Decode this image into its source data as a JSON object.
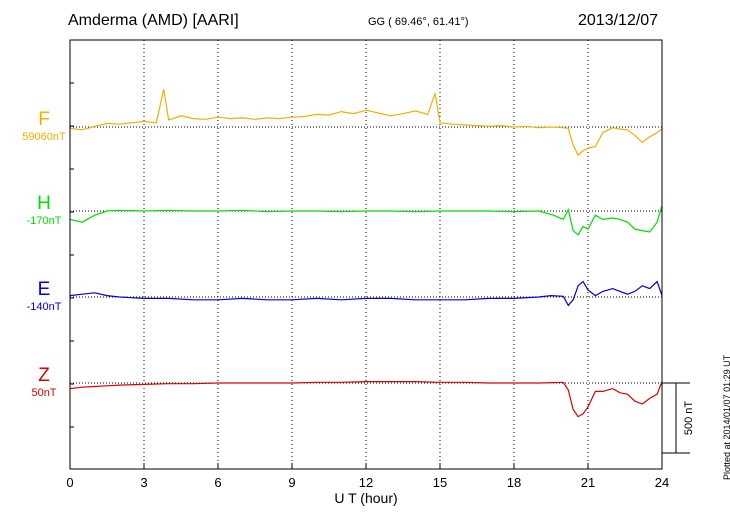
{
  "header": {
    "station": "Amderma (AMD)  [AARI]",
    "coords": "GG ( 69.46°,  61.41°)",
    "date": "2013/12/07"
  },
  "footer": {
    "plotted": "Plotted at 2014/01/07 01:29 UT"
  },
  "chart_data": {
    "type": "line",
    "title": "Amderma (AMD)  [AARI]",
    "xlabel": "U T (hour)",
    "xlim": [
      0,
      24
    ],
    "xticks": [
      0,
      3,
      6,
      9,
      12,
      15,
      18,
      21,
      24
    ],
    "ylabel": "",
    "scale_bar": "500 nT",
    "grid": "vertical dotted at 3-hour intervals; dotted baseline per channel",
    "series": [
      {
        "name": "F",
        "baseline_label": "59060nT",
        "color": "#f0b000",
        "x": [
          0,
          0.5,
          1,
          1.5,
          2,
          2.5,
          3,
          3.5,
          3.8,
          4,
          4.5,
          5,
          5.5,
          6,
          6.5,
          7,
          7.5,
          8,
          8.5,
          9,
          9.5,
          10,
          10.5,
          11,
          11.5,
          12,
          12.5,
          13,
          13.5,
          14,
          14.5,
          14.8,
          15,
          15.5,
          16,
          16.5,
          17,
          17.5,
          18,
          18.5,
          19,
          19.5,
          20,
          20.2,
          20.4,
          20.6,
          20.8,
          21,
          21.3,
          21.6,
          22,
          22.3,
          22.6,
          22.9,
          23.2,
          23.5,
          23.8,
          24
        ],
        "values": [
          -10,
          -20,
          5,
          25,
          20,
          30,
          40,
          30,
          270,
          50,
          80,
          60,
          55,
          70,
          60,
          65,
          55,
          65,
          60,
          70,
          75,
          90,
          85,
          110,
          95,
          120,
          100,
          80,
          95,
          115,
          90,
          240,
          30,
          20,
          15,
          10,
          5,
          10,
          0,
          5,
          -5,
          0,
          -5,
          -10,
          -130,
          -200,
          -170,
          -150,
          -140,
          -40,
          -5,
          -15,
          -20,
          -60,
          -110,
          -70,
          -40,
          -15
        ]
      },
      {
        "name": "H",
        "baseline_label": "-170nT",
        "color": "#00dd00",
        "x": [
          0,
          0.5,
          1,
          1.5,
          2,
          3,
          4,
          5,
          6,
          7,
          8,
          9,
          10,
          11,
          12,
          13,
          14,
          15,
          16,
          17,
          18,
          19,
          19.6,
          20,
          20.2,
          20.4,
          20.6,
          20.8,
          21,
          21.3,
          21.6,
          22,
          22.3,
          22.6,
          22.9,
          23.2,
          23.5,
          23.8,
          24
        ],
        "values": [
          -60,
          -80,
          -30,
          0,
          5,
          0,
          5,
          0,
          0,
          5,
          -5,
          0,
          0,
          -5,
          0,
          0,
          -5,
          0,
          0,
          0,
          -5,
          0,
          -30,
          -60,
          10,
          -140,
          -170,
          -110,
          -130,
          -30,
          -60,
          -50,
          -60,
          -80,
          -130,
          -140,
          -150,
          -80,
          40
        ]
      },
      {
        "name": "E",
        "baseline_label": "-140nT",
        "color": "#0000dd",
        "x": [
          0,
          0.5,
          1,
          1.5,
          2,
          3,
          4,
          5,
          6,
          7,
          8,
          9,
          10,
          11,
          12,
          13,
          14,
          15,
          16,
          17,
          18,
          19,
          19.5,
          20,
          20.2,
          20.4,
          20.6,
          20.8,
          21,
          21.3,
          21.6,
          22,
          22.3,
          22.6,
          22.9,
          23.2,
          23.5,
          23.8,
          24
        ],
        "values": [
          10,
          20,
          30,
          10,
          0,
          -10,
          -10,
          -20,
          -20,
          -10,
          -20,
          -20,
          -10,
          -20,
          -10,
          -10,
          -20,
          -20,
          -20,
          -10,
          -10,
          0,
          10,
          5,
          -60,
          -20,
          80,
          110,
          50,
          10,
          40,
          60,
          40,
          20,
          40,
          80,
          60,
          110,
          10
        ]
      },
      {
        "name": "Z",
        "baseline_label": "50nT",
        "color": "#dd0000",
        "x": [
          0,
          0.5,
          1,
          1.5,
          2,
          3,
          4,
          5,
          6,
          7,
          8,
          9,
          10,
          11,
          12,
          13,
          14,
          15,
          16,
          17,
          18,
          19,
          20,
          20.2,
          20.4,
          20.6,
          20.8,
          21,
          21.3,
          21.6,
          22,
          22.3,
          22.6,
          22.9,
          23.2,
          23.5,
          23.8,
          24
        ],
        "values": [
          -40,
          -30,
          -25,
          -20,
          -15,
          -10,
          -5,
          -5,
          0,
          0,
          0,
          0,
          5,
          5,
          10,
          10,
          10,
          5,
          5,
          0,
          0,
          0,
          5,
          -50,
          -190,
          -240,
          -220,
          -170,
          -60,
          -60,
          -40,
          -70,
          -80,
          -130,
          -150,
          -110,
          -80,
          10
        ]
      }
    ]
  }
}
